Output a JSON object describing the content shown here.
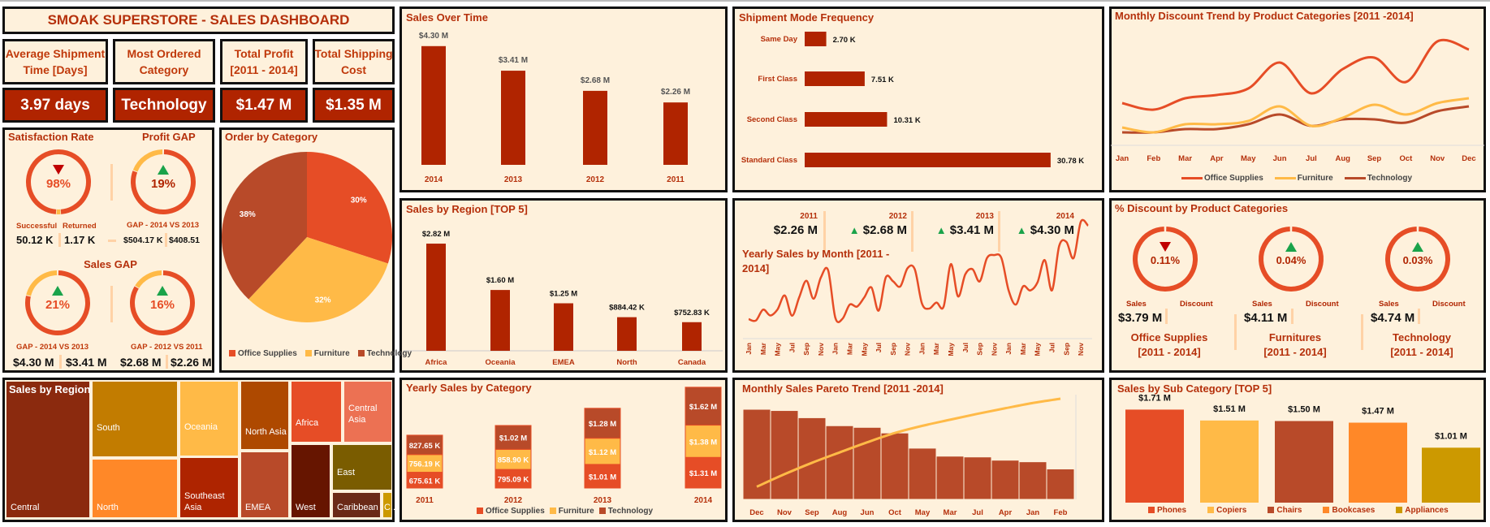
{
  "header": {
    "title": "SMOAK SUPERSTORE - SALES DASHBOARD"
  },
  "kpis": [
    {
      "label_line1": "Average Shipment",
      "label_line2": "Time [Days]",
      "value": "3.97 days"
    },
    {
      "label_line1": "Most Ordered",
      "label_line2": "Category",
      "value": "Technology"
    },
    {
      "label_line1": "Total Profit",
      "label_line2": "[2011 - 2014]",
      "value": "$1.47 M"
    },
    {
      "label_line1": "Total Shipping",
      "label_line2": "Cost",
      "value": "$1.35 M"
    }
  ],
  "colors": {
    "title": "#B5300B",
    "kpi_bg": "#B02400",
    "panel_bg": "#FEF1DC",
    "bar": "#B02400",
    "office_supplies": "#E64D26",
    "furniture": "#FFBA47",
    "technology": "#B84A29",
    "up": "#1AA34A",
    "down": "#C00000",
    "divider": "#FFD2A6"
  },
  "gauges": {
    "satisfaction": {
      "title": "Satisfaction Rate",
      "percent": 98,
      "value": "98%",
      "trend": "down",
      "label_a": "Successful",
      "label_b": "Returned",
      "value_a": "50.12 K",
      "value_b": "1.17 K"
    },
    "profit_gap": {
      "title": "Profit GAP",
      "percent": 19,
      "value": "19%",
      "trend": "up",
      "caption": "GAP - 2014 VS 2013",
      "value_a": "$504.17 K",
      "value_b": "$408.51"
    },
    "sales_gap_title": "Sales GAP",
    "sales_gap_1": {
      "percent": 21,
      "value": "21%",
      "trend": "up",
      "caption": "GAP - 2014 VS 2013",
      "value_a": "$4.30 M",
      "value_b": "$3.41 M"
    },
    "sales_gap_2": {
      "percent": 16,
      "value": "16%",
      "trend": "up",
      "caption": "GAP - 2012 VS 2011",
      "value_a": "$2.68 M",
      "value_b": "$2.26 M"
    }
  },
  "discount_panel": {
    "title": "% Discount by Product Categories",
    "sales_label": "Sales",
    "discount_label": "Discount",
    "items": [
      {
        "value": "0.11%",
        "trend": "down",
        "sales": "$3.79 M",
        "name": "Office Supplies",
        "period": "[2011 - 2014]"
      },
      {
        "value": "0.04%",
        "trend": "up",
        "sales": "$4.11 M",
        "name": "Furnitures",
        "period": "[2011 - 2014]"
      },
      {
        "value": "0.03%",
        "trend": "up",
        "sales": "$4.74 M",
        "name": "Technology",
        "period": "[2011 - 2014]"
      }
    ]
  },
  "yearly_kpis": [
    {
      "year": "2011",
      "value": "$2.26 M",
      "trend": "none"
    },
    {
      "year": "2012",
      "value": "$2.68 M",
      "trend": "up"
    },
    {
      "year": "2013",
      "value": "$3.41 M",
      "trend": "up"
    },
    {
      "year": "2014",
      "value": "$4.30 M",
      "trend": "up"
    }
  ],
  "chart_data": [
    {
      "type": "pie",
      "title": "Order by Category",
      "categories": [
        "Office Supplies",
        "Furniture",
        "Technology"
      ],
      "values": [
        30,
        32,
        38
      ],
      "labels": [
        "30%",
        "32%",
        "38%"
      ],
      "legend": "bottom"
    },
    {
      "type": "bar",
      "title": "Sales Over Time",
      "categories": [
        "2014",
        "2013",
        "2012",
        "2011"
      ],
      "values": [
        4.3,
        3.41,
        2.68,
        2.26
      ],
      "labels": [
        "$4.30 M",
        "$3.41 M",
        "$2.68 M",
        "$2.26 M"
      ],
      "unit": "M"
    },
    {
      "type": "bar",
      "orientation": "horizontal",
      "title": "Shipment Mode Frequency",
      "categories": [
        "Same Day",
        "First Class",
        "Second Class",
        "Standard Class"
      ],
      "values": [
        2.7,
        7.51,
        10.31,
        30.78
      ],
      "labels": [
        "2.70 K",
        "7.51 K",
        "10.31 K",
        "30.78 K"
      ],
      "unit": "K"
    },
    {
      "type": "line",
      "title": "Monthly Discount Trend by Product Categories [2011 -2014]",
      "categories": [
        "Jan",
        "Feb",
        "Mar",
        "Apr",
        "May",
        "Jun",
        "Jul",
        "Aug",
        "Sep",
        "Oct",
        "Nov",
        "Dec"
      ],
      "legend": "bottom",
      "series": [
        {
          "name": "Office Supplies",
          "values": [
            0.37,
            0.33,
            0.4,
            0.42,
            0.46,
            0.62,
            0.43,
            0.58,
            0.65,
            0.5,
            0.75,
            0.7
          ]
        },
        {
          "name": "Furniture",
          "values": [
            0.22,
            0.19,
            0.24,
            0.24,
            0.26,
            0.35,
            0.23,
            0.28,
            0.36,
            0.3,
            0.37,
            0.4
          ]
        },
        {
          "name": "Technology",
          "values": [
            0.19,
            0.19,
            0.21,
            0.21,
            0.24,
            0.3,
            0.23,
            0.27,
            0.27,
            0.25,
            0.32,
            0.35
          ]
        }
      ]
    },
    {
      "type": "bar",
      "title": "Sales by Region [TOP 5]",
      "categories": [
        "Africa",
        "Oceania",
        "EMEA",
        "North",
        "Canada"
      ],
      "values": [
        2.82,
        1.6,
        1.25,
        0.88442,
        0.75283
      ],
      "labels": [
        "$2.82 M",
        "$1.60 M",
        "$1.25 M",
        "$884.42 K",
        "$752.83 K"
      ],
      "unit": "M"
    },
    {
      "type": "line",
      "title_line1": "Yearly Sales by Month [2011 -",
      "title_line2": "2014]",
      "tick_labels": [
        "Jan",
        "Mar",
        "May",
        "Jul",
        "Sep",
        "Nov",
        "Jan",
        "Mar",
        "May",
        "Jul",
        "Sep",
        "Nov",
        "Jan",
        "Mar",
        "May",
        "Jul",
        "Sep",
        "Nov",
        "Jan",
        "Mar",
        "May",
        "Jul",
        "Sep",
        "Nov"
      ],
      "unit": "K",
      "series": [
        {
          "year": "2011",
          "values": [
            98,
            91,
            145,
            116,
            146,
            215,
            115,
            206,
            288,
            199,
            304,
            340
          ]
        },
        {
          "year": "2012",
          "values": [
            105,
            100,
            170,
            160,
            205,
            255,
            140,
            305,
            285,
            260,
            350,
            345
          ]
        },
        {
          "year": "2013",
          "values": [
            175,
            150,
            180,
            160,
            370,
            210,
            320,
            345,
            285,
            400,
            415,
            400
          ]
        },
        {
          "year": "2014",
          "values": [
            240,
            170,
            260,
            240,
            280,
            390,
            240,
            460,
            480,
            400,
            580,
            560
          ]
        }
      ]
    },
    {
      "type": "bar",
      "stacked": true,
      "title": "Yearly Sales by Category",
      "categories": [
        "2011",
        "2012",
        "2013",
        "2014"
      ],
      "legend": "bottom",
      "unit": "M",
      "series": [
        {
          "name": "Office Supplies",
          "values": [
            0.67561,
            0.79509,
            1.01,
            1.31
          ],
          "labels": [
            "675.61 K",
            "795.09 K",
            "$1.01 M",
            "$1.31 M"
          ]
        },
        {
          "name": "Furniture",
          "values": [
            0.75619,
            0.8589,
            1.12,
            1.38
          ],
          "labels": [
            "756.19 K",
            "858.90 K",
            "$1.12 M",
            "$1.38 M"
          ]
        },
        {
          "name": "Technology",
          "values": [
            0.82765,
            1.02,
            1.28,
            1.62
          ],
          "labels": [
            "827.65 K",
            "$1.02 M",
            "$1.28 M",
            "$1.62 M"
          ]
        }
      ]
    },
    {
      "type": "bar",
      "pareto": true,
      "title": "Monthly Sales Pareto Trend [2011 -2014]",
      "categories": [
        "Dec",
        "Nov",
        "Sep",
        "Aug",
        "Jun",
        "Oct",
        "May",
        "Mar",
        "Jul",
        "Apr",
        "Jan",
        "Feb"
      ],
      "values": [
        1590,
        1568,
        1441,
        1300,
        1271,
        1172,
        904,
        763,
        749,
        692,
        664,
        537
      ],
      "unit": "K",
      "cumulative_line": true
    },
    {
      "type": "bar",
      "title": "Sales by Sub Category [TOP 5]",
      "categories": [
        "Phones",
        "Copiers",
        "Chairs",
        "Bookcases",
        "Appliances"
      ],
      "values": [
        1.71,
        1.51,
        1.5,
        1.47,
        1.01
      ],
      "labels": [
        "$1.71 M",
        "$1.51 M",
        "$1.50 M",
        "$1.47 M",
        "$1.01 M"
      ],
      "colors": [
        "#E64D26",
        "#FFBA47",
        "#B84A29",
        "#FF8828",
        "#CC9900"
      ],
      "legend": "bottom",
      "unit": "M"
    },
    {
      "type": "treemap",
      "title": "Sales by Region",
      "categories": [
        "Central",
        "South",
        "North",
        "Oceania",
        "Southeast Asia",
        "North Asia",
        "EMEA",
        "Africa",
        "Central Asia",
        "West",
        "East",
        "Caribbean",
        "C..."
      ],
      "colors": [
        "#8B2A0E",
        "#C27C00",
        "#FF8828",
        "#FFBA47",
        "#AE2400",
        "#AE4900",
        "#B84A29",
        "#E64D26",
        "#EC7153",
        "#661500",
        "#7A5C00",
        "#6A2A17",
        "#CC9900"
      ]
    }
  ]
}
